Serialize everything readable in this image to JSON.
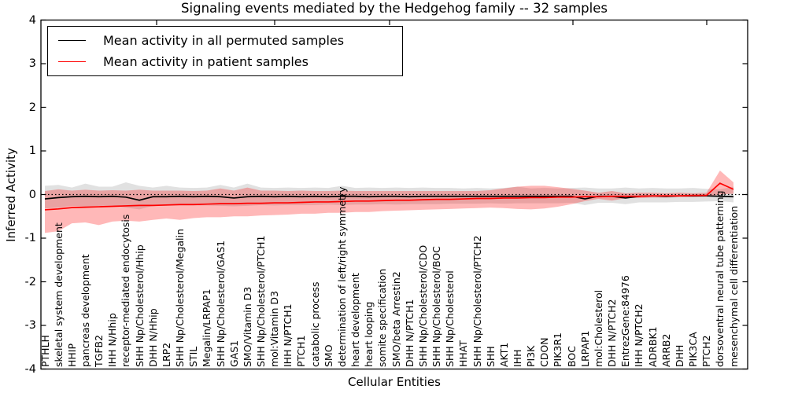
{
  "title": "Signaling events mediated by the Hedgehog family -- 32 samples",
  "legend": {
    "items": [
      {
        "label": "Mean activity in all permuted samples",
        "color": "#000000"
      },
      {
        "label": "Mean activity in patient samples",
        "color": "#ff0000"
      }
    ]
  },
  "chart_data": {
    "type": "line",
    "title": "Signaling events mediated by the Hedgehog family -- 32 samples",
    "xlabel": "Cellular Entities",
    "ylabel": "Inferred Activity",
    "ylim": [
      -4,
      4
    ],
    "yticks": [
      4,
      3,
      2,
      1,
      0,
      -1,
      -2,
      -3,
      -4
    ],
    "grid": false,
    "legend_position": "upper left",
    "zero_line": {
      "y": 0,
      "style": "dotted",
      "color": "#000000"
    },
    "categories": [
      "PTHLH",
      "skeletal system development",
      "HHIP",
      "pancreas development",
      "TGFB2",
      "IHH N/Hhip",
      "receptor-mediated endocytosis",
      "SHH Np/Cholesterol/Hhip",
      "DHH N/Hhip",
      "LRP2",
      "SHH Np/Cholesterol/Megalin",
      "STIL",
      "Megalin/LRPAP1",
      "SHH Np/Cholesterol/GAS1",
      "GAS1",
      "SMO/Vitamin D3",
      "SHH Np/Cholesterol/PTCH1",
      "mol:Vitamin D3",
      "IHH N/PTCH1",
      "PTCH1",
      "catabolic process",
      "SMO",
      "determination of left/right symmetry",
      "heart development",
      "heart looping",
      "somite specification",
      "SMO/beta Arrestin2",
      "DHH N/PTCH1",
      "SHH Np/Cholesterol/CDO",
      "SHH Np/Cholesterol/BOC",
      "SHH Np/Cholesterol",
      "HHAT",
      "SHH Np/Cholesterol/PTCH2",
      "SHH",
      "AKT1",
      "IHH",
      "PI3K",
      "CDON",
      "PIK3R1",
      "BOC",
      "LRPAP1",
      "mol:Cholesterol",
      "DHH N/PTCH2",
      "EntrezGene:84976",
      "IHH N/PTCH2",
      "ADRBK1",
      "ARRB2",
      "DHH",
      "PIK3CA",
      "PTCH2",
      "dorsoventral neural tube patterning",
      "mesenchymal cell differentiation"
    ],
    "series": [
      {
        "name": "Mean activity in all permuted samples",
        "color": "#000000",
        "band_color": "#888888",
        "band_opacity": 0.25,
        "values": [
          -0.1,
          -0.07,
          -0.05,
          -0.04,
          -0.05,
          -0.04,
          -0.06,
          -0.13,
          -0.05,
          -0.05,
          -0.04,
          -0.05,
          -0.04,
          -0.05,
          -0.08,
          -0.05,
          -0.04,
          -0.05,
          -0.04,
          -0.05,
          -0.04,
          -0.05,
          -0.04,
          -0.04,
          -0.05,
          -0.04,
          -0.04,
          -0.05,
          -0.04,
          -0.04,
          -0.04,
          -0.04,
          -0.04,
          -0.04,
          -0.04,
          -0.04,
          -0.04,
          -0.04,
          -0.04,
          -0.04,
          -0.1,
          -0.04,
          -0.04,
          -0.08,
          -0.04,
          -0.03,
          -0.04,
          -0.03,
          -0.03,
          -0.03,
          -0.04,
          -0.05
        ],
        "band_upper": [
          0.2,
          0.22,
          0.16,
          0.25,
          0.18,
          0.18,
          0.28,
          0.2,
          0.16,
          0.2,
          0.16,
          0.15,
          0.16,
          0.22,
          0.16,
          0.25,
          0.16,
          0.15,
          0.16,
          0.15,
          0.16,
          0.15,
          0.2,
          0.15,
          0.16,
          0.15,
          0.16,
          0.15,
          0.16,
          0.15,
          0.15,
          0.14,
          0.15,
          0.14,
          0.15,
          0.18,
          0.14,
          0.15,
          0.14,
          0.15,
          0.16,
          0.14,
          0.14,
          0.16,
          0.14,
          0.15,
          0.14,
          0.14,
          0.15,
          0.13,
          0.12,
          0.18
        ],
        "band_lower": [
          -0.32,
          -0.3,
          -0.26,
          -0.28,
          -0.26,
          -0.25,
          -0.3,
          -0.34,
          -0.26,
          -0.26,
          -0.25,
          -0.25,
          -0.25,
          -0.26,
          -0.27,
          -0.26,
          -0.24,
          -0.25,
          -0.24,
          -0.24,
          -0.24,
          -0.23,
          -0.24,
          -0.23,
          -0.23,
          -0.22,
          -0.23,
          -0.22,
          -0.22,
          -0.22,
          -0.21,
          -0.21,
          -0.21,
          -0.2,
          -0.21,
          -0.2,
          -0.2,
          -0.2,
          -0.2,
          -0.19,
          -0.24,
          -0.19,
          -0.19,
          -0.22,
          -0.18,
          -0.18,
          -0.18,
          -0.17,
          -0.17,
          -0.16,
          -0.15,
          -0.18
        ]
      },
      {
        "name": "Mean activity in patient samples",
        "color": "#ff0000",
        "band_color": "#ff0000",
        "band_opacity": 0.28,
        "values": [
          -0.35,
          -0.33,
          -0.3,
          -0.29,
          -0.28,
          -0.27,
          -0.26,
          -0.25,
          -0.25,
          -0.24,
          -0.23,
          -0.23,
          -0.22,
          -0.21,
          -0.21,
          -0.2,
          -0.2,
          -0.19,
          -0.19,
          -0.18,
          -0.17,
          -0.17,
          -0.16,
          -0.15,
          -0.15,
          -0.14,
          -0.13,
          -0.13,
          -0.12,
          -0.11,
          -0.11,
          -0.1,
          -0.09,
          -0.09,
          -0.08,
          -0.08,
          -0.07,
          -0.07,
          -0.06,
          -0.06,
          -0.05,
          -0.05,
          -0.04,
          -0.04,
          -0.04,
          -0.03,
          -0.03,
          -0.03,
          -0.02,
          -0.02,
          0.26,
          0.12
        ],
        "band_upper": [
          0.08,
          0.12,
          0.09,
          0.11,
          0.09,
          0.1,
          0.09,
          0.11,
          0.09,
          0.09,
          0.09,
          0.08,
          0.09,
          0.14,
          0.09,
          0.16,
          0.09,
          0.09,
          0.08,
          0.09,
          0.08,
          0.08,
          0.09,
          0.08,
          0.08,
          0.08,
          0.08,
          0.08,
          0.08,
          0.08,
          0.08,
          0.08,
          0.08,
          0.1,
          0.14,
          0.18,
          0.2,
          0.2,
          0.17,
          0.13,
          0.09,
          0.04,
          0.08,
          0.03,
          0.04,
          0.04,
          0.03,
          0.04,
          0.03,
          0.04,
          0.55,
          0.28
        ],
        "band_lower": [
          -0.88,
          -0.84,
          -0.66,
          -0.64,
          -0.7,
          -0.62,
          -0.6,
          -0.62,
          -0.58,
          -0.55,
          -0.58,
          -0.54,
          -0.52,
          -0.52,
          -0.5,
          -0.5,
          -0.48,
          -0.47,
          -0.46,
          -0.44,
          -0.44,
          -0.42,
          -0.42,
          -0.4,
          -0.4,
          -0.38,
          -0.37,
          -0.36,
          -0.35,
          -0.34,
          -0.33,
          -0.32,
          -0.31,
          -0.3,
          -0.31,
          -0.33,
          -0.34,
          -0.32,
          -0.28,
          -0.22,
          -0.15,
          -0.1,
          -0.14,
          -0.08,
          -0.08,
          -0.07,
          -0.07,
          -0.06,
          -0.06,
          -0.05,
          0.0,
          0.02
        ]
      }
    ]
  }
}
